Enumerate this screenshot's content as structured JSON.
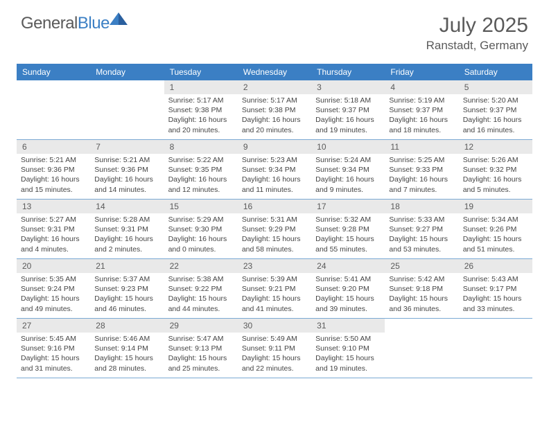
{
  "brand": {
    "name_part1": "General",
    "name_part2": "Blue",
    "text_color": "#5a5a5a",
    "accent_color": "#3b7fc4"
  },
  "title": "July 2025",
  "location": "Ranstadt, Germany",
  "colors": {
    "header_bg": "#3b7fc4",
    "header_text": "#ffffff",
    "daynum_bg": "#e9e9e9",
    "border": "#7aa9d4",
    "text": "#444444"
  },
  "weekdays": [
    "Sunday",
    "Monday",
    "Tuesday",
    "Wednesday",
    "Thursday",
    "Friday",
    "Saturday"
  ],
  "cells": [
    {
      "day": "",
      "sunrise": "",
      "sunset": "",
      "daylight": ""
    },
    {
      "day": "",
      "sunrise": "",
      "sunset": "",
      "daylight": ""
    },
    {
      "day": "1",
      "sunrise": "Sunrise: 5:17 AM",
      "sunset": "Sunset: 9:38 PM",
      "daylight": "Daylight: 16 hours and 20 minutes."
    },
    {
      "day": "2",
      "sunrise": "Sunrise: 5:17 AM",
      "sunset": "Sunset: 9:38 PM",
      "daylight": "Daylight: 16 hours and 20 minutes."
    },
    {
      "day": "3",
      "sunrise": "Sunrise: 5:18 AM",
      "sunset": "Sunset: 9:37 PM",
      "daylight": "Daylight: 16 hours and 19 minutes."
    },
    {
      "day": "4",
      "sunrise": "Sunrise: 5:19 AM",
      "sunset": "Sunset: 9:37 PM",
      "daylight": "Daylight: 16 hours and 18 minutes."
    },
    {
      "day": "5",
      "sunrise": "Sunrise: 5:20 AM",
      "sunset": "Sunset: 9:37 PM",
      "daylight": "Daylight: 16 hours and 16 minutes."
    },
    {
      "day": "6",
      "sunrise": "Sunrise: 5:21 AM",
      "sunset": "Sunset: 9:36 PM",
      "daylight": "Daylight: 16 hours and 15 minutes."
    },
    {
      "day": "7",
      "sunrise": "Sunrise: 5:21 AM",
      "sunset": "Sunset: 9:36 PM",
      "daylight": "Daylight: 16 hours and 14 minutes."
    },
    {
      "day": "8",
      "sunrise": "Sunrise: 5:22 AM",
      "sunset": "Sunset: 9:35 PM",
      "daylight": "Daylight: 16 hours and 12 minutes."
    },
    {
      "day": "9",
      "sunrise": "Sunrise: 5:23 AM",
      "sunset": "Sunset: 9:34 PM",
      "daylight": "Daylight: 16 hours and 11 minutes."
    },
    {
      "day": "10",
      "sunrise": "Sunrise: 5:24 AM",
      "sunset": "Sunset: 9:34 PM",
      "daylight": "Daylight: 16 hours and 9 minutes."
    },
    {
      "day": "11",
      "sunrise": "Sunrise: 5:25 AM",
      "sunset": "Sunset: 9:33 PM",
      "daylight": "Daylight: 16 hours and 7 minutes."
    },
    {
      "day": "12",
      "sunrise": "Sunrise: 5:26 AM",
      "sunset": "Sunset: 9:32 PM",
      "daylight": "Daylight: 16 hours and 5 minutes."
    },
    {
      "day": "13",
      "sunrise": "Sunrise: 5:27 AM",
      "sunset": "Sunset: 9:31 PM",
      "daylight": "Daylight: 16 hours and 4 minutes."
    },
    {
      "day": "14",
      "sunrise": "Sunrise: 5:28 AM",
      "sunset": "Sunset: 9:31 PM",
      "daylight": "Daylight: 16 hours and 2 minutes."
    },
    {
      "day": "15",
      "sunrise": "Sunrise: 5:29 AM",
      "sunset": "Sunset: 9:30 PM",
      "daylight": "Daylight: 16 hours and 0 minutes."
    },
    {
      "day": "16",
      "sunrise": "Sunrise: 5:31 AM",
      "sunset": "Sunset: 9:29 PM",
      "daylight": "Daylight: 15 hours and 58 minutes."
    },
    {
      "day": "17",
      "sunrise": "Sunrise: 5:32 AM",
      "sunset": "Sunset: 9:28 PM",
      "daylight": "Daylight: 15 hours and 55 minutes."
    },
    {
      "day": "18",
      "sunrise": "Sunrise: 5:33 AM",
      "sunset": "Sunset: 9:27 PM",
      "daylight": "Daylight: 15 hours and 53 minutes."
    },
    {
      "day": "19",
      "sunrise": "Sunrise: 5:34 AM",
      "sunset": "Sunset: 9:26 PM",
      "daylight": "Daylight: 15 hours and 51 minutes."
    },
    {
      "day": "20",
      "sunrise": "Sunrise: 5:35 AM",
      "sunset": "Sunset: 9:24 PM",
      "daylight": "Daylight: 15 hours and 49 minutes."
    },
    {
      "day": "21",
      "sunrise": "Sunrise: 5:37 AM",
      "sunset": "Sunset: 9:23 PM",
      "daylight": "Daylight: 15 hours and 46 minutes."
    },
    {
      "day": "22",
      "sunrise": "Sunrise: 5:38 AM",
      "sunset": "Sunset: 9:22 PM",
      "daylight": "Daylight: 15 hours and 44 minutes."
    },
    {
      "day": "23",
      "sunrise": "Sunrise: 5:39 AM",
      "sunset": "Sunset: 9:21 PM",
      "daylight": "Daylight: 15 hours and 41 minutes."
    },
    {
      "day": "24",
      "sunrise": "Sunrise: 5:41 AM",
      "sunset": "Sunset: 9:20 PM",
      "daylight": "Daylight: 15 hours and 39 minutes."
    },
    {
      "day": "25",
      "sunrise": "Sunrise: 5:42 AM",
      "sunset": "Sunset: 9:18 PM",
      "daylight": "Daylight: 15 hours and 36 minutes."
    },
    {
      "day": "26",
      "sunrise": "Sunrise: 5:43 AM",
      "sunset": "Sunset: 9:17 PM",
      "daylight": "Daylight: 15 hours and 33 minutes."
    },
    {
      "day": "27",
      "sunrise": "Sunrise: 5:45 AM",
      "sunset": "Sunset: 9:16 PM",
      "daylight": "Daylight: 15 hours and 31 minutes."
    },
    {
      "day": "28",
      "sunrise": "Sunrise: 5:46 AM",
      "sunset": "Sunset: 9:14 PM",
      "daylight": "Daylight: 15 hours and 28 minutes."
    },
    {
      "day": "29",
      "sunrise": "Sunrise: 5:47 AM",
      "sunset": "Sunset: 9:13 PM",
      "daylight": "Daylight: 15 hours and 25 minutes."
    },
    {
      "day": "30",
      "sunrise": "Sunrise: 5:49 AM",
      "sunset": "Sunset: 9:11 PM",
      "daylight": "Daylight: 15 hours and 22 minutes."
    },
    {
      "day": "31",
      "sunrise": "Sunrise: 5:50 AM",
      "sunset": "Sunset: 9:10 PM",
      "daylight": "Daylight: 15 hours and 19 minutes."
    },
    {
      "day": "",
      "sunrise": "",
      "sunset": "",
      "daylight": ""
    },
    {
      "day": "",
      "sunrise": "",
      "sunset": "",
      "daylight": ""
    }
  ]
}
